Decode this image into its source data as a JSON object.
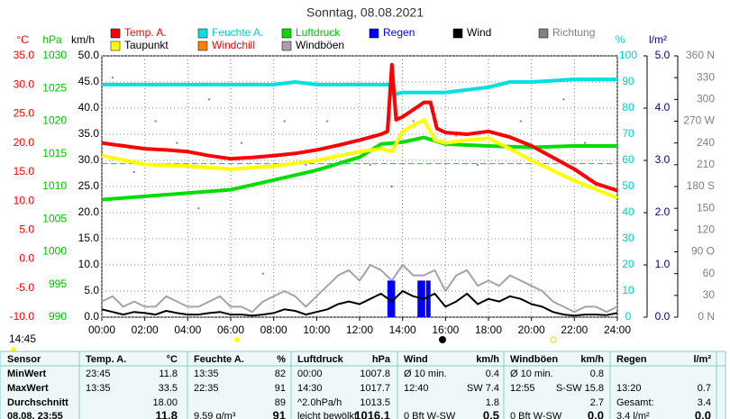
{
  "chart_data": {
    "type": "line",
    "title": "Sonntag, 08.08.2021",
    "current_time": "14:45",
    "grid": true,
    "xlim": [
      0,
      24
    ],
    "xticks": [
      {
        "value": 0,
        "label": "00:00"
      },
      {
        "value": 2,
        "label": "02:00"
      },
      {
        "value": 4,
        "label": "04:00"
      },
      {
        "value": 6,
        "label": "06:00"
      },
      {
        "value": 8,
        "label": "08:00"
      },
      {
        "value": 10,
        "label": "10:00"
      },
      {
        "value": 12,
        "label": "12:00"
      },
      {
        "value": 14,
        "label": "14:00"
      },
      {
        "value": 16,
        "label": "16:00"
      },
      {
        "value": 18,
        "label": "18:00"
      },
      {
        "value": 20,
        "label": "20:00"
      },
      {
        "value": 22,
        "label": "22:00"
      },
      {
        "value": 24,
        "label": "24:00"
      }
    ],
    "axes": [
      {
        "label": "°C",
        "color": "#ff0000",
        "ylim": [
          -10,
          35
        ],
        "yticks": [
          {
            "value": 35,
            "label": "35.0"
          },
          {
            "value": 30,
            "label": "30.0"
          },
          {
            "value": 25,
            "label": "25.0"
          },
          {
            "value": 20,
            "label": "20.0"
          },
          {
            "value": 15,
            "label": "15.0"
          },
          {
            "value": 10,
            "label": "10.0"
          },
          {
            "value": 5,
            "label": "5.0"
          },
          {
            "value": 0,
            "label": "0.0"
          },
          {
            "value": -5,
            "label": "-5.0"
          },
          {
            "value": -10,
            "label": "-10.0"
          }
        ]
      },
      {
        "label": "hPa",
        "color": "#00c000",
        "ylim": [
          990,
          1030
        ],
        "yticks": [
          1030,
          1025,
          1020,
          1015,
          1010,
          1005,
          1000,
          995,
          990
        ]
      },
      {
        "label": "km/h",
        "color": "#000000",
        "ylim": [
          0,
          50
        ],
        "yticks": [
          {
            "value": 50,
            "label": "50.0"
          },
          {
            "value": 45,
            "label": "45.0"
          },
          {
            "value": 40,
            "label": "40.0"
          },
          {
            "value": 35,
            "label": "35.0"
          },
          {
            "value": 30,
            "label": "30.0"
          },
          {
            "value": 25,
            "label": "25.0"
          },
          {
            "value": 20,
            "label": "20.0"
          },
          {
            "value": 15,
            "label": "15.0"
          },
          {
            "value": 10,
            "label": "10.0"
          },
          {
            "value": 5,
            "label": "5.0"
          },
          {
            "value": 0,
            "label": "0.0"
          }
        ]
      },
      {
        "label": "%",
        "color": "#00cccc",
        "ylim": [
          0,
          100
        ],
        "yticks": [
          100,
          90,
          80,
          70,
          60,
          50,
          40,
          30,
          20,
          10,
          0
        ]
      },
      {
        "label": "l/m²",
        "color": "#000080",
        "ylim": [
          0,
          5
        ],
        "yticks": [
          {
            "value": 5,
            "label": "5.0"
          },
          {
            "value": 4,
            "label": "4.0"
          },
          {
            "value": 3,
            "label": "3.0"
          },
          {
            "value": 2,
            "label": "2.0"
          },
          {
            "value": 1,
            "label": "1.0"
          },
          {
            "value": 0,
            "label": "0.0"
          }
        ]
      },
      {
        "color": "#808080",
        "ylim": [
          0,
          360
        ],
        "yticks": [
          {
            "value": 360,
            "label": "360 N"
          },
          330,
          300,
          {
            "value": 270,
            "label": "270 W"
          },
          240,
          210,
          {
            "value": 180,
            "label": "180 S"
          },
          150,
          120,
          {
            "value": 90,
            "label": "90 O"
          },
          60,
          30,
          {
            "value": 0,
            "label": "0 N"
          }
        ]
      }
    ],
    "pressure_mean": 1013.5,
    "series": [
      {
        "name": "Temp. A.",
        "color": "#ff0000",
        "axis": 0,
        "style": "line",
        "x": [
          0,
          1,
          2,
          3,
          4,
          5,
          6,
          7,
          8,
          9,
          10,
          11,
          12,
          13,
          13.3,
          13.5,
          13.7,
          14,
          15,
          15.3,
          15.6,
          16,
          17,
          18,
          19,
          20,
          21,
          22,
          23,
          24
        ],
        "values": [
          20.0,
          19.5,
          19.0,
          18.8,
          18.5,
          17.8,
          17.3,
          17.5,
          17.8,
          18.2,
          18.8,
          19.6,
          20.5,
          21.5,
          22,
          33.5,
          24,
          24.5,
          27.0,
          27.0,
          22.5,
          21.8,
          21.5,
          22.0,
          21.0,
          19.5,
          17.5,
          15.5,
          13.0,
          11.8
        ]
      },
      {
        "name": "Feuchte A.",
        "color": "#00e0e0",
        "axis": 3,
        "style": "line",
        "x": [
          0,
          2,
          4,
          6,
          8,
          9,
          10,
          12,
          13,
          13.4,
          13.5,
          14,
          16,
          17,
          18,
          19,
          20,
          22,
          24
        ],
        "values": [
          89,
          89,
          89,
          89,
          89,
          90,
          89,
          89,
          89,
          89,
          85,
          86,
          86,
          87,
          88,
          90,
          90,
          91,
          91
        ]
      },
      {
        "name": "Luftdruck",
        "color": "#00dd00",
        "axis": 1,
        "style": "line",
        "x": [
          0,
          2,
          4,
          6,
          8,
          10,
          12,
          13,
          14,
          15,
          16,
          18,
          20,
          22,
          24
        ],
        "values": [
          1008,
          1008.5,
          1009,
          1009.5,
          1011,
          1012.5,
          1014.5,
          1016.5,
          1016.8,
          1017.5,
          1016.5,
          1016.2,
          1016,
          1016.2,
          1016.2
        ]
      },
      {
        "name": "Regen",
        "color": "#0000ff",
        "axis": 4,
        "style": "bar",
        "x": [
          13.4,
          13.55,
          14.8,
          14.95,
          15.2
        ],
        "values": [
          0.7,
          0.7,
          0.7,
          0.7,
          0.7
        ]
      },
      {
        "name": "Wind",
        "color": "#000000",
        "axis": 2,
        "style": "line",
        "x": [
          0,
          0.5,
          1,
          1.5,
          2,
          2.5,
          3,
          3.5,
          4,
          4.5,
          5,
          5.5,
          6,
          6.5,
          7,
          7.5,
          8,
          8.5,
          9,
          9.5,
          10,
          10.5,
          11,
          11.5,
          12,
          12.5,
          13,
          13.5,
          14,
          14.5,
          15,
          15.5,
          16,
          16.5,
          17,
          17.5,
          18,
          18.5,
          19,
          19.5,
          20,
          20.5,
          21,
          21.5,
          22,
          22.5,
          23,
          23.5,
          24
        ],
        "values": [
          1.5,
          1.0,
          0.5,
          1.0,
          0.8,
          0.5,
          1.2,
          0.8,
          0.5,
          0.5,
          0.8,
          1.0,
          0.5,
          0.5,
          0.3,
          0.5,
          0.8,
          1.5,
          1.2,
          0.5,
          1.0,
          1.5,
          2.5,
          3.0,
          2.5,
          3.5,
          4.5,
          3.0,
          5.0,
          4.0,
          3.5,
          4.5,
          2.0,
          3.0,
          4.5,
          2.5,
          3.5,
          3.0,
          4.0,
          3.5,
          2.5,
          2.0,
          1.0,
          0.5,
          0.3,
          0.5,
          0.5,
          0.4,
          0.8
        ]
      },
      {
        "name": "Richtung",
        "color": "#808080",
        "axis": 5,
        "style": "dots",
        "x": [
          0.5,
          1.5,
          2.5,
          3.5,
          4.5,
          5,
          6.5,
          7.5,
          8.5,
          9.5,
          10.5,
          11.5,
          12.5,
          13.5,
          14.5,
          16.5,
          17.5,
          18.5,
          19.5,
          21.5,
          22.5
        ],
        "values": [
          330,
          200,
          270,
          240,
          150,
          300,
          240,
          60,
          270,
          210,
          270,
          240,
          210,
          180,
          270,
          250,
          210,
          240,
          270,
          300,
          240
        ]
      },
      {
        "name": "Taupunkt",
        "color": "#ffff00",
        "axis": 0,
        "style": "line",
        "x": [
          0,
          2,
          4,
          6,
          8,
          10,
          12,
          13,
          13.5,
          14,
          15,
          15.5,
          16,
          17,
          18,
          19,
          20,
          22,
          24
        ],
        "values": [
          17.8,
          16.3,
          16.0,
          15.5,
          16.0,
          17.0,
          18.5,
          19.0,
          18.5,
          22.0,
          24.0,
          20.5,
          20.0,
          20.5,
          20.8,
          19.0,
          17.0,
          13.5,
          10.5
        ]
      },
      {
        "name": "Windchill",
        "color": "#ff8000",
        "axis": 0,
        "style": "line",
        "x": [],
        "values": []
      },
      {
        "name": "Windböen",
        "color": "#a8a0b0",
        "axis": 2,
        "style": "line",
        "x": [
          0,
          0.5,
          1,
          1.5,
          2,
          2.5,
          3,
          3.5,
          4,
          4.5,
          5,
          5.5,
          6,
          6.5,
          7,
          7.5,
          8,
          8.5,
          9,
          9.5,
          10,
          10.5,
          11,
          11.5,
          12,
          12.5,
          13,
          13.5,
          14,
          14.5,
          15,
          15.5,
          16,
          16.5,
          17,
          17.5,
          18,
          18.5,
          19,
          19.5,
          20,
          20.5,
          21,
          21.5,
          22,
          22.5,
          23,
          23.5,
          24
        ],
        "values": [
          3,
          4,
          2,
          3,
          2,
          2,
          4,
          3,
          2,
          2,
          3,
          4,
          2,
          2,
          1,
          3,
          4,
          5,
          4,
          2,
          4,
          6,
          8,
          9,
          7,
          10,
          9,
          7,
          10,
          8,
          8,
          9,
          5,
          8,
          9,
          6,
          7,
          6,
          8,
          7,
          6,
          5,
          3,
          2,
          1,
          2,
          2,
          1,
          2
        ]
      }
    ]
  },
  "table": {
    "header": [
      "Sensor",
      "Temp. A.",
      "°C",
      "Feuchte A.",
      "%",
      "Luftdruck",
      "hPa",
      "Wind",
      "km/h",
      "Windböen",
      "km/h",
      "Regen",
      "l/m²"
    ],
    "rows": [
      [
        "MinWert",
        "23:45",
        "11.8",
        "13:35",
        "82",
        "00:00",
        "1007.8",
        "Ø 10 min.",
        "0.4",
        "Ø 10 min.",
        "0.8",
        null,
        null
      ],
      [
        "MaxWert",
        "13:35",
        "33.5",
        "22:35",
        "91",
        "14:30",
        "1017.7",
        "12:40",
        "SW 7.4",
        "12:55",
        "S-SW 15.8",
        "13:20",
        "0.7"
      ],
      [
        "Durchschnitt",
        null,
        "18.00",
        null,
        "89",
        "^2.0hPa/h",
        "1013.5",
        null,
        "1.8",
        null,
        "2.7",
        "Gesamt:",
        "3.4"
      ],
      [
        "08.08. 23:55",
        null,
        "11.8",
        "9.59 g/m³",
        "91",
        "leicht bewölkt",
        "1016.1",
        "0 Bft W-SW",
        "0.5",
        "0 Bft W-SW",
        "0.0",
        "3.4 l/m²",
        "0.0"
      ]
    ]
  }
}
